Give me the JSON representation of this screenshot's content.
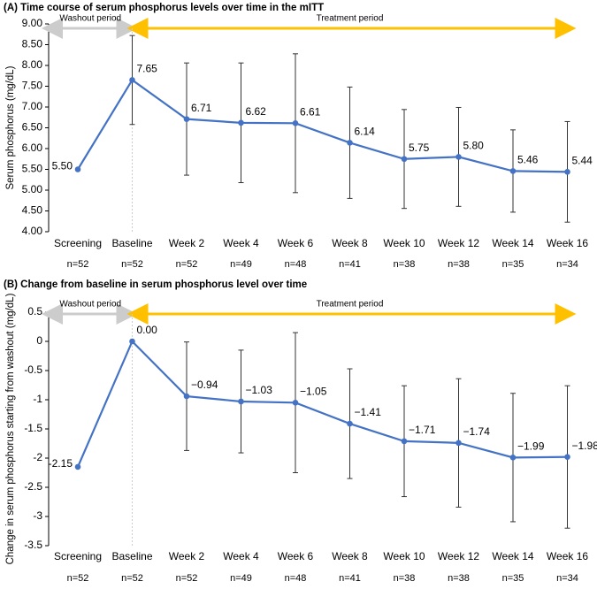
{
  "chart_data": [
    {
      "type": "line",
      "title": "(A) Time course of serum phosphorus levels over time in the mITT",
      "y_label": "Serum phosphorus (mg/dL)",
      "categories": [
        "Screening",
        "Baseline",
        "Week 2",
        "Week 4",
        "Week 6",
        "Week 8",
        "Week 10",
        "Week 12",
        "Week 14",
        "Week 16"
      ],
      "n_labels": [
        "n=52",
        "n=52",
        "n=52",
        "n=49",
        "n=48",
        "n=41",
        "n=38",
        "n=38",
        "n=35",
        "n=34"
      ],
      "values": [
        5.5,
        7.65,
        6.71,
        6.62,
        6.61,
        6.14,
        5.75,
        5.8,
        5.46,
        5.44
      ],
      "value_labels": [
        "5.50",
        "7.65",
        "6.71",
        "6.62",
        "6.61",
        "6.14",
        "5.75",
        "5.80",
        "5.46",
        "5.44"
      ],
      "label_colors": [
        "#000000",
        "#e00000",
        "#000000",
        "#000000",
        "#000000",
        "#e00000",
        "#000000",
        "#000000",
        "#000000",
        "#e00000"
      ],
      "errors": [
        null,
        1.07,
        1.35,
        1.44,
        1.67,
        1.34,
        1.19,
        1.19,
        0.99,
        1.21
      ],
      "color": "#4472c4",
      "ylim": [
        4,
        9
      ],
      "yticks": [
        {
          "value": 4,
          "label": "4.00"
        },
        {
          "value": 4.5,
          "label": "4.50"
        },
        {
          "value": 5,
          "label": "5.00"
        },
        {
          "value": 5.5,
          "label": "5.50"
        },
        {
          "value": 6,
          "label": "6.00"
        },
        {
          "value": 6.5,
          "label": "6.50"
        },
        {
          "value": 7,
          "label": "7.00"
        },
        {
          "value": 7.5,
          "label": "7.50"
        },
        {
          "value": 8,
          "label": "8.00"
        },
        {
          "value": 8.5,
          "label": "8.50"
        },
        {
          "value": 9,
          "label": "9.00"
        }
      ],
      "washout_label": "Washout period",
      "treatment_label": "Treatment period"
    },
    {
      "type": "line",
      "title": "(B) Change from baseline in serum phosphorus level over time",
      "y_label": "Change in serum phosphorus starting from washout (mg/dL)",
      "categories": [
        "Screening",
        "Baseline",
        "Week 2",
        "Week 4",
        "Week 6",
        "Week 8",
        "Week 10",
        "Week 12",
        "Week 14",
        "Week 16"
      ],
      "n_labels": [
        "n=52",
        "n=52",
        "n=52",
        "n=49",
        "n=48",
        "n=41",
        "n=38",
        "n=38",
        "n=35",
        "n=34"
      ],
      "values": [
        -2.15,
        0,
        -0.94,
        -1.03,
        -1.05,
        -1.41,
        -1.71,
        -1.74,
        -1.99,
        -1.98
      ],
      "value_labels": [
        "-2.15",
        "0.00",
        "−0.94",
        "−1.03",
        "−1.05",
        "−1.41",
        "−1.71",
        "−1.74",
        "−1.99",
        "−1.98"
      ],
      "label_colors": [
        "#000000",
        "#000000",
        "#000000",
        "#000000",
        "#000000",
        "#e00000",
        "#000000",
        "#000000",
        "#000000",
        "#e00000"
      ],
      "errors": [
        null,
        null,
        0.93,
        0.88,
        1.2,
        0.94,
        0.95,
        1.1,
        1.1,
        1.22
      ],
      "color": "#4472c4",
      "ylim": [
        -3.5,
        0.5
      ],
      "yticks": [
        -3.5,
        -3,
        -2.5,
        -2,
        -1.5,
        -1,
        -0.5,
        0,
        0.5
      ],
      "washout_label": "Washout period",
      "treatment_label": "Treatment period"
    }
  ]
}
